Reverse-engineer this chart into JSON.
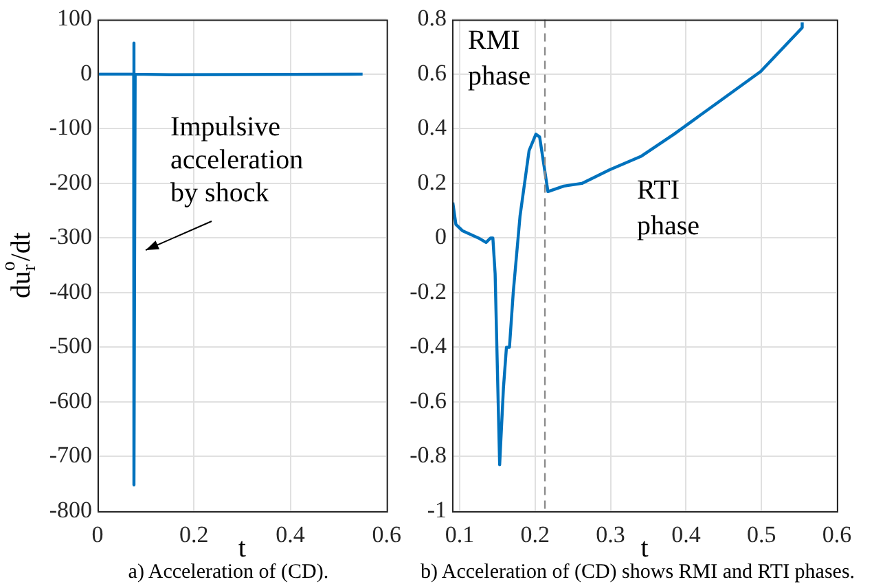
{
  "chart_data": [
    {
      "type": "line",
      "xlabel": "t",
      "ylabel": "du$^{o}$$_{r}$/dt",
      "x": [
        0,
        0.075,
        0.075,
        0.076,
        0.078,
        0.15,
        0.55
      ],
      "series": [
        {
          "color": "#0072bd",
          "values": [
            0,
            0,
            57,
            -752,
            0,
            -1,
            0
          ]
        }
      ],
      "xlim": [
        0,
        0.6
      ],
      "xticks": [
        0,
        0.2,
        0.4,
        0.6
      ],
      "ylim": [
        -800,
        100
      ],
      "yticks": [
        -800,
        -700,
        -600,
        -500,
        -400,
        -300,
        -200,
        -100,
        0,
        100
      ],
      "grid": true,
      "marker": "none",
      "legend": false,
      "annotations": [
        {
          "text": "Impulsive acceleration by shock",
          "x": 0.08,
          "y": -320
        },
        "a) Acceleration of (CD)."
      ]
    },
    {
      "type": "line",
      "xlabel": "t",
      "x": [
        0.0909,
        0.095,
        0.104,
        0.125,
        0.135,
        0.141,
        0.144,
        0.147,
        0.153,
        0.158,
        0.162,
        0.166,
        0.171,
        0.18,
        0.192,
        0.201,
        0.206,
        0.217,
        0.238,
        0.262,
        0.299,
        0.341,
        0.384,
        0.444,
        0.499,
        0.554,
        0.554
      ],
      "series": [
        {
          "color": "#0072bd",
          "values": [
            0.13,
            0.05,
            0.026,
            0,
            -0.016,
            0,
            0,
            -0.13,
            -0.83,
            -0.55,
            -0.4,
            -0.4,
            -0.2,
            0.08,
            0.32,
            0.38,
            0.37,
            0.17,
            0.19,
            0.2,
            0.25,
            0.3,
            0.38,
            0.5,
            0.61,
            0.77,
            0.79
          ]
        }
      ],
      "xlim": [
        0.09,
        0.6
      ],
      "xticks": [
        0.1,
        0.2,
        0.3,
        0.4,
        0.5,
        0.6
      ],
      "ylim": [
        -1,
        0.8
      ],
      "yticks": [
        -1,
        -0.8,
        -0.6,
        -0.4,
        -0.2,
        0,
        0.2,
        0.4,
        0.6,
        0.8
      ],
      "ref_lines": [
        {
          "axis": "x",
          "value": 0.213,
          "color": "#8c8c8c",
          "line_style": "dashed"
        }
      ],
      "grid": true,
      "marker": "none",
      "legend": false,
      "annotations": [
        "RMI phase",
        "RTI phase",
        "b) Acceleration of (CD) shows RMI and RTI phases."
      ]
    }
  ]
}
